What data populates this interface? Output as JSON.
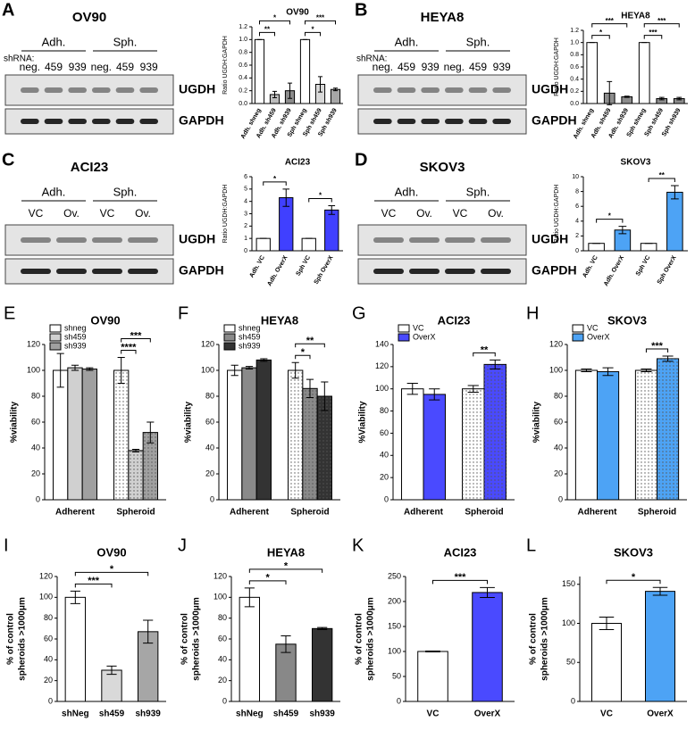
{
  "blots": [
    {
      "panel": "A",
      "title": "OV90",
      "groups": [
        "Adh.",
        "Sph."
      ],
      "lane_prefix": "shRNA:",
      "lanes": [
        "neg.",
        "459",
        "939",
        "neg.",
        "459",
        "939"
      ],
      "bands": [
        "UGDH",
        "GAPDH"
      ]
    },
    {
      "panel": "B",
      "title": "HEYA8",
      "groups": [
        "Adh.",
        "Sph."
      ],
      "lane_prefix": "shRNA:",
      "lanes": [
        "neg.",
        "459",
        "939",
        "neg.",
        "459",
        "939"
      ],
      "bands": [
        "UGDH",
        "GAPDH"
      ]
    },
    {
      "panel": "C",
      "title": "ACI23",
      "groups": [
        "Adh.",
        "Sph."
      ],
      "lanes": [
        "VC",
        "Ov.",
        "VC",
        "Ov."
      ],
      "bands": [
        "UGDH",
        "GAPDH"
      ]
    },
    {
      "panel": "D",
      "title": "SKOV3",
      "groups": [
        "Adh.",
        "Sph."
      ],
      "lanes": [
        "VC",
        "Ov.",
        "VC",
        "Ov."
      ],
      "bands": [
        "UGDH",
        "GAPDH"
      ]
    }
  ],
  "chart_data": [
    {
      "type": "bar",
      "title": "OV90",
      "ylabel": "Ratio UGDH:GAPDH",
      "categories": [
        "Adh. shneg",
        "Adh. sh459",
        "Adh. sh939",
        "Sph shneg",
        "Sph sh459",
        "Sph sh939"
      ],
      "values": [
        1,
        0.14,
        0.2,
        1,
        0.3,
        0.22
      ],
      "errors": [
        0,
        0.05,
        0.12,
        0,
        0.12,
        0.02
      ],
      "colors": [
        "#ffffff",
        "#bdbdbd",
        "#8c8c8c",
        "#ffffff",
        "#d9d9d9",
        "#a6a6a6"
      ],
      "ylim": [
        0,
        1.2
      ],
      "yticks": [
        {
          "value": 0,
          "label": "0.0"
        },
        0.2,
        0.4,
        0.6,
        0.8,
        {
          "value": 1,
          "label": "1.0"
        },
        1.2
      ],
      "brackets": [
        {
          "from": 0,
          "to": 1,
          "label": "**"
        },
        {
          "from": 3,
          "to": 4,
          "label": "*"
        },
        {
          "from": 0,
          "to": 2,
          "label": "*"
        },
        {
          "from": 3,
          "to": 5,
          "label": "***"
        }
      ]
    },
    {
      "type": "bar",
      "title": "HEYA8",
      "ylabel": "Ratio UGDH:GAPDH",
      "categories": [
        "Adh. shneg",
        "Adh. sh459",
        "Adh. sh939",
        "Sph shneg",
        "Sph sh459",
        "Sph sh939"
      ],
      "values": [
        1,
        0.17,
        0.11,
        1,
        0.08,
        0.08
      ],
      "errors": [
        0,
        0.19,
        0.01,
        0,
        0.02,
        0.02
      ],
      "colors": [
        "#ffffff",
        "#8c8c8c",
        "#8c8c8c",
        "#ffffff",
        "#8c8c8c",
        "#8c8c8c"
      ],
      "ylim": [
        0,
        1.2
      ],
      "yticks": [
        {
          "value": 0,
          "label": "0.0"
        },
        0.2,
        0.4,
        0.6,
        0.8,
        {
          "value": 1,
          "label": "1.0"
        },
        1.2
      ],
      "brackets": [
        {
          "from": 0,
          "to": 1,
          "label": "*"
        },
        {
          "from": 3,
          "to": 4,
          "label": "***"
        },
        {
          "from": 0,
          "to": 2,
          "label": "***"
        },
        {
          "from": 3,
          "to": 5,
          "label": "***"
        }
      ]
    },
    {
      "type": "bar",
      "title": "ACI23",
      "ylabel": "Ratio UGDH:GAPDH",
      "categories": [
        "Adh. VC",
        "Adh. OverX",
        "Sph VC",
        "Sph OverX"
      ],
      "values": [
        1,
        4.3,
        1,
        3.3
      ],
      "errors": [
        0,
        0.7,
        0,
        0.35
      ],
      "colors": [
        "#ffffff",
        "#4040ff",
        "#ffffff",
        "#4040ff"
      ],
      "ylim": [
        0,
        6
      ],
      "yticks": [
        0,
        1,
        2,
        3,
        4,
        5,
        6
      ],
      "brackets": [
        {
          "from": 0,
          "to": 1,
          "label": "*"
        },
        {
          "from": 2,
          "to": 3,
          "label": "*"
        }
      ]
    },
    {
      "type": "bar",
      "title": "SKOV3",
      "ylabel": "Ratio UGDH:GAPDH",
      "categories": [
        "Adh. VC",
        "Adh. OverX",
        "Sph VC",
        "Sph OverX"
      ],
      "values": [
        1,
        2.8,
        1,
        7.9
      ],
      "errors": [
        0,
        0.5,
        0,
        0.9
      ],
      "colors": [
        "#ffffff",
        "#4da3f5",
        "#ffffff",
        "#4da3f5"
      ],
      "ylim": [
        0,
        10
      ],
      "yticks": [
        0,
        2,
        4,
        6,
        8,
        10
      ],
      "brackets": [
        {
          "from": 0,
          "to": 1,
          "label": "*"
        },
        {
          "from": 2,
          "to": 3,
          "label": "**"
        }
      ]
    },
    {
      "type": "grouped_bar",
      "panel": "E",
      "title": "OV90",
      "ylabel": "%viability",
      "categories": [
        "Adherent",
        "Spheroid"
      ],
      "dotted": [
        false,
        true
      ],
      "series": [
        {
          "name": "shneg",
          "color": "#ffffff",
          "values": [
            100,
            100
          ],
          "errors": [
            13,
            10
          ]
        },
        {
          "name": "sh459",
          "color": "#d0d0d0",
          "values": [
            102,
            38
          ],
          "errors": [
            2,
            1
          ]
        },
        {
          "name": "sh939",
          "color": "#a0a0a0",
          "values": [
            101,
            52
          ],
          "errors": [
            1,
            8
          ]
        }
      ],
      "ylim": [
        0,
        120
      ],
      "yticks": [
        0,
        20,
        40,
        60,
        80,
        100,
        120
      ],
      "brackets": [
        {
          "category": 1,
          "from": 0,
          "to": 1,
          "label": "****"
        },
        {
          "category": 1,
          "from": 0,
          "to": 2,
          "label": "***"
        }
      ]
    },
    {
      "type": "grouped_bar",
      "panel": "F",
      "title": "HEYA8",
      "ylabel": "%viability",
      "categories": [
        "Adherent",
        "Spheroid"
      ],
      "dotted": [
        false,
        true
      ],
      "series": [
        {
          "name": "shneg",
          "color": "#ffffff",
          "values": [
            100,
            100
          ],
          "errors": [
            4,
            6
          ]
        },
        {
          "name": "sh459",
          "color": "#8a8a8a",
          "values": [
            102,
            86
          ],
          "errors": [
            1,
            7
          ]
        },
        {
          "name": "sh939",
          "color": "#333333",
          "values": [
            108,
            80
          ],
          "errors": [
            1,
            11
          ]
        }
      ],
      "ylim": [
        0,
        120
      ],
      "yticks": [
        0,
        20,
        40,
        60,
        80,
        100,
        120
      ],
      "brackets": [
        {
          "category": 1,
          "from": 0,
          "to": 1,
          "label": "*"
        },
        {
          "category": 1,
          "from": 0,
          "to": 2,
          "label": "**"
        }
      ]
    },
    {
      "type": "grouped_bar",
      "panel": "G",
      "title": "ACI23",
      "ylabel": "%Viability",
      "categories": [
        "Adherent",
        "Spheroid"
      ],
      "dotted": [
        false,
        true
      ],
      "series": [
        {
          "name": "VC",
          "color": "#ffffff",
          "values": [
            100,
            100
          ],
          "errors": [
            5,
            3
          ]
        },
        {
          "name": "OverX",
          "color": "#4a4aff",
          "values": [
            95,
            122
          ],
          "errors": [
            5,
            4
          ]
        }
      ],
      "ylim": [
        0,
        140
      ],
      "yticks": [
        0,
        20,
        40,
        60,
        80,
        100,
        120,
        140
      ],
      "brackets": [
        {
          "category": 1,
          "from": 0,
          "to": 1,
          "label": "**"
        }
      ]
    },
    {
      "type": "grouped_bar",
      "panel": "H",
      "title": "SKOV3",
      "ylabel": "%viability",
      "categories": [
        "Adherent",
        "Spheroid"
      ],
      "dotted": [
        false,
        true
      ],
      "series": [
        {
          "name": "VC",
          "color": "#ffffff",
          "values": [
            100,
            100
          ],
          "errors": [
            1,
            1
          ]
        },
        {
          "name": "OverX",
          "color": "#4da3f5",
          "values": [
            99,
            109
          ],
          "errors": [
            3,
            2
          ]
        }
      ],
      "ylim": [
        0,
        120
      ],
      "yticks": [
        0,
        20,
        40,
        60,
        80,
        100,
        120
      ],
      "brackets": [
        {
          "category": 1,
          "from": 0,
          "to": 1,
          "label": "***"
        }
      ]
    },
    {
      "type": "bar",
      "panel": "I",
      "title": "OV90",
      "ylabel": [
        "% of control",
        "spheroids >1000μm"
      ],
      "categories": [
        "shNeg",
        "sh459",
        "sh939"
      ],
      "values": [
        100,
        30,
        67
      ],
      "errors": [
        6,
        4,
        11
      ],
      "colors": [
        "#ffffff",
        "#d9d9d9",
        "#a6a6a6"
      ],
      "ylim": [
        0,
        120
      ],
      "yticks": [
        0,
        20,
        40,
        60,
        80,
        100,
        120
      ],
      "brackets": [
        {
          "from": 0,
          "to": 1,
          "label": "***"
        },
        {
          "from": 0,
          "to": 2,
          "label": "*"
        }
      ]
    },
    {
      "type": "bar",
      "panel": "J",
      "title": "HEYA8",
      "ylabel": [
        "% of control",
        "spheroids >1000μm"
      ],
      "categories": [
        "shNeg",
        "sh459",
        "sh939"
      ],
      "values": [
        100,
        55,
        70
      ],
      "errors": [
        9,
        8,
        1
      ],
      "colors": [
        "#ffffff",
        "#888888",
        "#333333"
      ],
      "ylim": [
        0,
        120
      ],
      "yticks": [
        0,
        20,
        40,
        60,
        80,
        100,
        120
      ],
      "brackets": [
        {
          "from": 0,
          "to": 1,
          "label": "*"
        },
        {
          "from": 0,
          "to": 2,
          "label": "*"
        }
      ]
    },
    {
      "type": "bar",
      "panel": "K",
      "title": "ACI23",
      "ylabel": [
        "% of control",
        "spheroids >1000μm"
      ],
      "categories": [
        "VC",
        "OverX"
      ],
      "values": [
        100,
        218
      ],
      "errors": [
        1,
        10
      ],
      "colors": [
        "#ffffff",
        "#4a4aff"
      ],
      "ylim": [
        0,
        250
      ],
      "yticks": [
        0,
        50,
        100,
        150,
        200,
        250
      ],
      "brackets": [
        {
          "from": 0,
          "to": 1,
          "label": "***"
        }
      ]
    },
    {
      "type": "bar",
      "panel": "L",
      "title": "SKOV3",
      "ylabel": [
        "% of control",
        "spheroids >1000μm"
      ],
      "categories": [
        "VC",
        "OverX"
      ],
      "values": [
        100,
        141
      ],
      "errors": [
        8,
        5
      ],
      "colors": [
        "#ffffff",
        "#4da3f5"
      ],
      "ylim": [
        0,
        160
      ],
      "yticks": [
        0,
        50,
        100,
        150
      ],
      "brackets": [
        {
          "from": 0,
          "to": 1,
          "label": "*"
        }
      ]
    }
  ]
}
